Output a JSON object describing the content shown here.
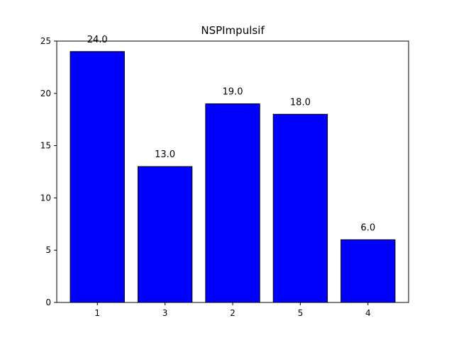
{
  "chart_data": {
    "type": "bar",
    "title": "NSPImpulsif",
    "xlabel": "",
    "ylabel": "",
    "categories": [
      "1",
      "3",
      "2",
      "5",
      "4"
    ],
    "values": [
      24.0,
      13.0,
      19.0,
      18.0,
      6.0
    ],
    "data_labels": [
      "24.0",
      "13.0",
      "19.0",
      "18.0",
      "6.0"
    ],
    "ylim": [
      0,
      25
    ],
    "yticks": [
      0,
      5,
      10,
      15,
      20,
      25
    ],
    "grid": false,
    "bar_color": "#0000ff",
    "edge_color": "#000000"
  }
}
